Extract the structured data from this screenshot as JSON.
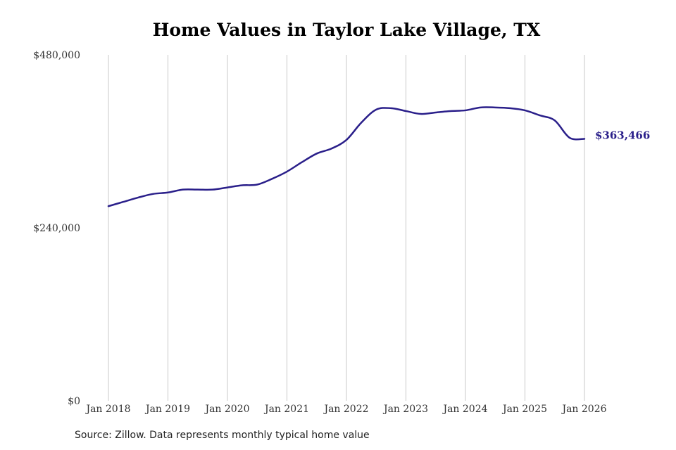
{
  "chart_data": {
    "type": "line",
    "title": "Home Values in Taylor Lake Village, TX",
    "xlabel": "",
    "ylabel": "",
    "ylim": [
      0,
      480000
    ],
    "y_ticks": [
      {
        "value": 0,
        "label": "$0"
      },
      {
        "value": 240000,
        "label": "$240,000"
      },
      {
        "value": 480000,
        "label": "$480,000"
      }
    ],
    "x_ticks": [
      {
        "value": 2018,
        "label": "Jan 2018"
      },
      {
        "value": 2019,
        "label": "Jan 2019"
      },
      {
        "value": 2020,
        "label": "Jan 2020"
      },
      {
        "value": 2021,
        "label": "Jan 2021"
      },
      {
        "value": 2022,
        "label": "Jan 2022"
      },
      {
        "value": 2023,
        "label": "Jan 2023"
      },
      {
        "value": 2024,
        "label": "Jan 2024"
      },
      {
        "value": 2025,
        "label": "Jan 2025"
      },
      {
        "value": 2026,
        "label": "Jan 2026"
      }
    ],
    "grid": "vertical",
    "series": [
      {
        "name": "",
        "color": "#2a1f8a",
        "x": [
          2018.0,
          2018.25,
          2018.5,
          2018.75,
          2019.0,
          2019.25,
          2019.5,
          2019.75,
          2020.0,
          2020.25,
          2020.5,
          2020.75,
          2021.0,
          2021.25,
          2021.5,
          2021.75,
          2022.0,
          2022.25,
          2022.5,
          2022.75,
          2023.0,
          2023.25,
          2023.5,
          2023.75,
          2024.0,
          2024.25,
          2024.5,
          2024.75,
          2025.0,
          2025.25,
          2025.5,
          2025.75,
          2026.0
        ],
        "values": [
          270000,
          276000,
          282000,
          287000,
          289000,
          293000,
          293000,
          293000,
          296000,
          299000,
          300000,
          308000,
          318000,
          331000,
          343000,
          350000,
          362000,
          386000,
          404000,
          406000,
          402000,
          398000,
          400000,
          402000,
          403000,
          407000,
          407000,
          406000,
          403000,
          396000,
          389000,
          365000,
          363466
        ]
      }
    ],
    "end_label": "$363,466"
  },
  "source": "Source: Zillow. Data represents monthly typical home value"
}
